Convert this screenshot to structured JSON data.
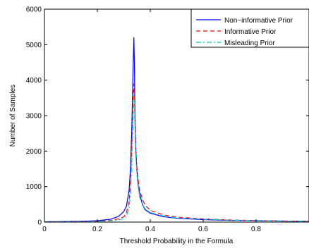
{
  "chart_data": {
    "type": "line",
    "title": "",
    "xlabel": "Threshold Probability in the Formula",
    "ylabel": "Number of Samples",
    "xlim": [
      0,
      1
    ],
    "ylim": [
      0,
      6000
    ],
    "xticks": [
      0,
      0.2,
      0.4,
      0.6,
      0.8
    ],
    "xtick_labels": [
      "0",
      "0.2",
      "0.4",
      "0.6",
      "0.8"
    ],
    "yticks": [
      0,
      1000,
      2000,
      3000,
      4000,
      5000,
      6000
    ],
    "ytick_labels": [
      "0",
      "1000",
      "2000",
      "3000",
      "4000",
      "5000",
      "6000"
    ],
    "grid": false,
    "legend_position": "top-right",
    "series": [
      {
        "name": "Non−informative Prior",
        "color": "#0000ff",
        "dash": "solid",
        "x": [
          0,
          0.05,
          0.1,
          0.15,
          0.2,
          0.25,
          0.28,
          0.3,
          0.31,
          0.32,
          0.325,
          0.33,
          0.335,
          0.338,
          0.34,
          0.342,
          0.345,
          0.35,
          0.355,
          0.36,
          0.37,
          0.38,
          0.4,
          0.45,
          0.5,
          0.6,
          0.7,
          0.8,
          0.9,
          1.0
        ],
        "y": [
          10,
          12,
          18,
          25,
          40,
          80,
          160,
          300,
          450,
          900,
          1500,
          2600,
          4300,
          5200,
          4500,
          3200,
          2100,
          1400,
          1000,
          800,
          500,
          350,
          250,
          150,
          110,
          70,
          50,
          40,
          30,
          20
        ]
      },
      {
        "name": "Informative Prior",
        "color": "#ff0000",
        "dash": "dashed",
        "x": [
          0,
          0.05,
          0.1,
          0.15,
          0.2,
          0.25,
          0.28,
          0.3,
          0.31,
          0.32,
          0.325,
          0.33,
          0.335,
          0.338,
          0.34,
          0.342,
          0.345,
          0.35,
          0.355,
          0.36,
          0.37,
          0.38,
          0.4,
          0.45,
          0.5,
          0.6,
          0.7,
          0.8,
          0.9,
          1.0
        ],
        "y": [
          5,
          8,
          10,
          15,
          25,
          45,
          90,
          150,
          260,
          600,
          1100,
          2100,
          3500,
          3900,
          3600,
          2900,
          2000,
          1500,
          1150,
          900,
          650,
          480,
          330,
          200,
          140,
          90,
          60,
          45,
          30,
          20
        ]
      },
      {
        "name": "Misleading Prior",
        "color": "#00c8c8",
        "dash": "dashdot",
        "x": [
          0,
          0.05,
          0.1,
          0.15,
          0.2,
          0.25,
          0.28,
          0.3,
          0.31,
          0.32,
          0.325,
          0.33,
          0.335,
          0.338,
          0.34,
          0.342,
          0.345,
          0.35,
          0.355,
          0.36,
          0.37,
          0.38,
          0.4,
          0.45,
          0.5,
          0.6,
          0.7,
          0.8,
          0.9,
          1.0
        ],
        "y": [
          5,
          6,
          8,
          12,
          20,
          35,
          60,
          100,
          180,
          400,
          800,
          1700,
          2900,
          3600,
          3400,
          2800,
          1900,
          1300,
          950,
          700,
          500,
          380,
          270,
          170,
          120,
          80,
          55,
          40,
          28,
          18
        ]
      }
    ]
  }
}
